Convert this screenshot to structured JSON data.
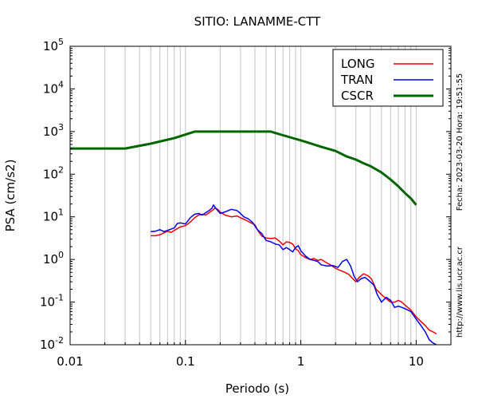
{
  "chart_data": {
    "type": "line",
    "title": "SITIO: LANAMME-CTT",
    "xlabel": "Periodo (s)",
    "ylabel": "PSA (cm/s2)",
    "x_scale": "log",
    "y_scale": "log",
    "xlim": [
      0.01,
      20
    ],
    "ylim": [
      0.01,
      100000
    ],
    "grid": "vertical minor and major lines",
    "legend_position": "top-right",
    "x_ticks": [
      {
        "label": "0.01",
        "value": 0.01
      },
      {
        "label": "0.1",
        "value": 0.1
      },
      {
        "label": "1",
        "value": 1
      },
      {
        "label": "10",
        "value": 10
      }
    ],
    "y_ticks": [
      {
        "base": "10",
        "exp": "-2",
        "value": 0.01
      },
      {
        "base": "10",
        "exp": "-1",
        "value": 0.1
      },
      {
        "base": "10",
        "exp": "0",
        "value": 1
      },
      {
        "base": "10",
        "exp": "1",
        "value": 10
      },
      {
        "base": "10",
        "exp": "2",
        "value": 100
      },
      {
        "base": "10",
        "exp": "3",
        "value": 1000
      },
      {
        "base": "10",
        "exp": "4",
        "value": 10000
      },
      {
        "base": "10",
        "exp": "5",
        "value": 100000
      }
    ],
    "side_notes": {
      "date": "Fecha: 2023-03-20 Hora: 19:51:55",
      "url": "http://www.lis.ucr.ac.cr"
    },
    "series": [
      {
        "name": "LONG",
        "color": "#ee0000",
        "points": [
          [
            0.05,
            3.6
          ],
          [
            0.055,
            3.6
          ],
          [
            0.06,
            3.8
          ],
          [
            0.065,
            4.2
          ],
          [
            0.07,
            4.6
          ],
          [
            0.075,
            4.3
          ],
          [
            0.08,
            4.8
          ],
          [
            0.09,
            5.8
          ],
          [
            0.1,
            6.2
          ],
          [
            0.11,
            7.5
          ],
          [
            0.12,
            9.5
          ],
          [
            0.13,
            11
          ],
          [
            0.14,
            11.5
          ],
          [
            0.15,
            11
          ],
          [
            0.16,
            12.5
          ],
          [
            0.17,
            14
          ],
          [
            0.18,
            16
          ],
          [
            0.19,
            15
          ],
          [
            0.2,
            13
          ],
          [
            0.22,
            11
          ],
          [
            0.25,
            10
          ],
          [
            0.28,
            10.5
          ],
          [
            0.3,
            9.5
          ],
          [
            0.33,
            8.5
          ],
          [
            0.36,
            7.5
          ],
          [
            0.4,
            6.5
          ],
          [
            0.43,
            4.5
          ],
          [
            0.46,
            3.5
          ],
          [
            0.5,
            3.2
          ],
          [
            0.55,
            3.1
          ],
          [
            0.6,
            3.2
          ],
          [
            0.65,
            2.7
          ],
          [
            0.7,
            2.2
          ],
          [
            0.75,
            2.6
          ],
          [
            0.8,
            2.5
          ],
          [
            0.85,
            2.3
          ],
          [
            0.9,
            1.8
          ],
          [
            0.95,
            1.6
          ],
          [
            1.0,
            1.3
          ],
          [
            1.1,
            1.1
          ],
          [
            1.2,
            1.0
          ],
          [
            1.3,
            1.05
          ],
          [
            1.4,
            0.95
          ],
          [
            1.5,
            1.0
          ],
          [
            1.6,
            0.9
          ],
          [
            1.8,
            0.75
          ],
          [
            2.0,
            0.62
          ],
          [
            2.2,
            0.55
          ],
          [
            2.4,
            0.5
          ],
          [
            2.6,
            0.45
          ],
          [
            2.8,
            0.36
          ],
          [
            3.0,
            0.3
          ],
          [
            3.2,
            0.38
          ],
          [
            3.5,
            0.46
          ],
          [
            3.8,
            0.42
          ],
          [
            4.1,
            0.35
          ],
          [
            4.5,
            0.2
          ],
          [
            5.0,
            0.15
          ],
          [
            5.5,
            0.12
          ],
          [
            6.0,
            0.1
          ],
          [
            6.5,
            0.1
          ],
          [
            7.0,
            0.11
          ],
          [
            7.5,
            0.1
          ],
          [
            8.0,
            0.085
          ],
          [
            9.0,
            0.065
          ],
          [
            10.0,
            0.045
          ],
          [
            11.0,
            0.035
          ],
          [
            12.0,
            0.028
          ],
          [
            13.0,
            0.022
          ],
          [
            14.0,
            0.02
          ],
          [
            15.0,
            0.018
          ]
        ]
      },
      {
        "name": "TRAN",
        "color": "#0000ee",
        "points": [
          [
            0.05,
            4.5
          ],
          [
            0.055,
            4.6
          ],
          [
            0.06,
            5.0
          ],
          [
            0.065,
            4.5
          ],
          [
            0.07,
            4.8
          ],
          [
            0.08,
            5.5
          ],
          [
            0.085,
            7.0
          ],
          [
            0.09,
            7.2
          ],
          [
            0.1,
            6.8
          ],
          [
            0.11,
            9.5
          ],
          [
            0.12,
            11.5
          ],
          [
            0.13,
            12
          ],
          [
            0.14,
            11
          ],
          [
            0.15,
            12.5
          ],
          [
            0.16,
            14
          ],
          [
            0.17,
            16
          ],
          [
            0.175,
            19
          ],
          [
            0.18,
            17
          ],
          [
            0.19,
            14
          ],
          [
            0.2,
            12
          ],
          [
            0.22,
            13
          ],
          [
            0.25,
            15
          ],
          [
            0.28,
            14
          ],
          [
            0.3,
            12
          ],
          [
            0.32,
            10
          ],
          [
            0.35,
            9
          ],
          [
            0.38,
            7.5
          ],
          [
            0.42,
            5
          ],
          [
            0.46,
            4
          ],
          [
            0.5,
            2.8
          ],
          [
            0.55,
            2.6
          ],
          [
            0.6,
            2.3
          ],
          [
            0.65,
            2.2
          ],
          [
            0.7,
            1.7
          ],
          [
            0.75,
            1.9
          ],
          [
            0.8,
            1.7
          ],
          [
            0.85,
            1.5
          ],
          [
            0.9,
            1.9
          ],
          [
            0.95,
            2.1
          ],
          [
            1.0,
            1.6
          ],
          [
            1.1,
            1.2
          ],
          [
            1.2,
            1.0
          ],
          [
            1.3,
            0.95
          ],
          [
            1.4,
            0.9
          ],
          [
            1.5,
            0.75
          ],
          [
            1.7,
            0.7
          ],
          [
            1.9,
            0.72
          ],
          [
            2.1,
            0.65
          ],
          [
            2.3,
            0.9
          ],
          [
            2.5,
            1.0
          ],
          [
            2.7,
            0.7
          ],
          [
            2.9,
            0.4
          ],
          [
            3.1,
            0.3
          ],
          [
            3.3,
            0.35
          ],
          [
            3.6,
            0.38
          ],
          [
            4.0,
            0.3
          ],
          [
            4.3,
            0.25
          ],
          [
            4.6,
            0.15
          ],
          [
            5.0,
            0.1
          ],
          [
            5.5,
            0.13
          ],
          [
            6.0,
            0.11
          ],
          [
            6.5,
            0.075
          ],
          [
            7.0,
            0.08
          ],
          [
            7.5,
            0.075
          ],
          [
            8.0,
            0.07
          ],
          [
            9.0,
            0.06
          ],
          [
            10.0,
            0.04
          ],
          [
            11.0,
            0.028
          ],
          [
            12.0,
            0.02
          ],
          [
            13.0,
            0.013
          ],
          [
            14.0,
            0.011
          ],
          [
            15.0,
            0.01
          ]
        ]
      },
      {
        "name": "CSCR",
        "color": "#006600",
        "points": [
          [
            0.01,
            400
          ],
          [
            0.03,
            400
          ],
          [
            0.05,
            520
          ],
          [
            0.08,
            700
          ],
          [
            0.12,
            1000
          ],
          [
            0.55,
            1000
          ],
          [
            0.7,
            820
          ],
          [
            1.0,
            620
          ],
          [
            1.5,
            440
          ],
          [
            2.0,
            350
          ],
          [
            2.5,
            260
          ],
          [
            3.0,
            220
          ],
          [
            3.5,
            180
          ],
          [
            4.0,
            155
          ],
          [
            5.0,
            110
          ],
          [
            6.0,
            75
          ],
          [
            7.0,
            52
          ],
          [
            8.0,
            36
          ],
          [
            9.0,
            27
          ],
          [
            10.0,
            19
          ]
        ]
      }
    ]
  }
}
